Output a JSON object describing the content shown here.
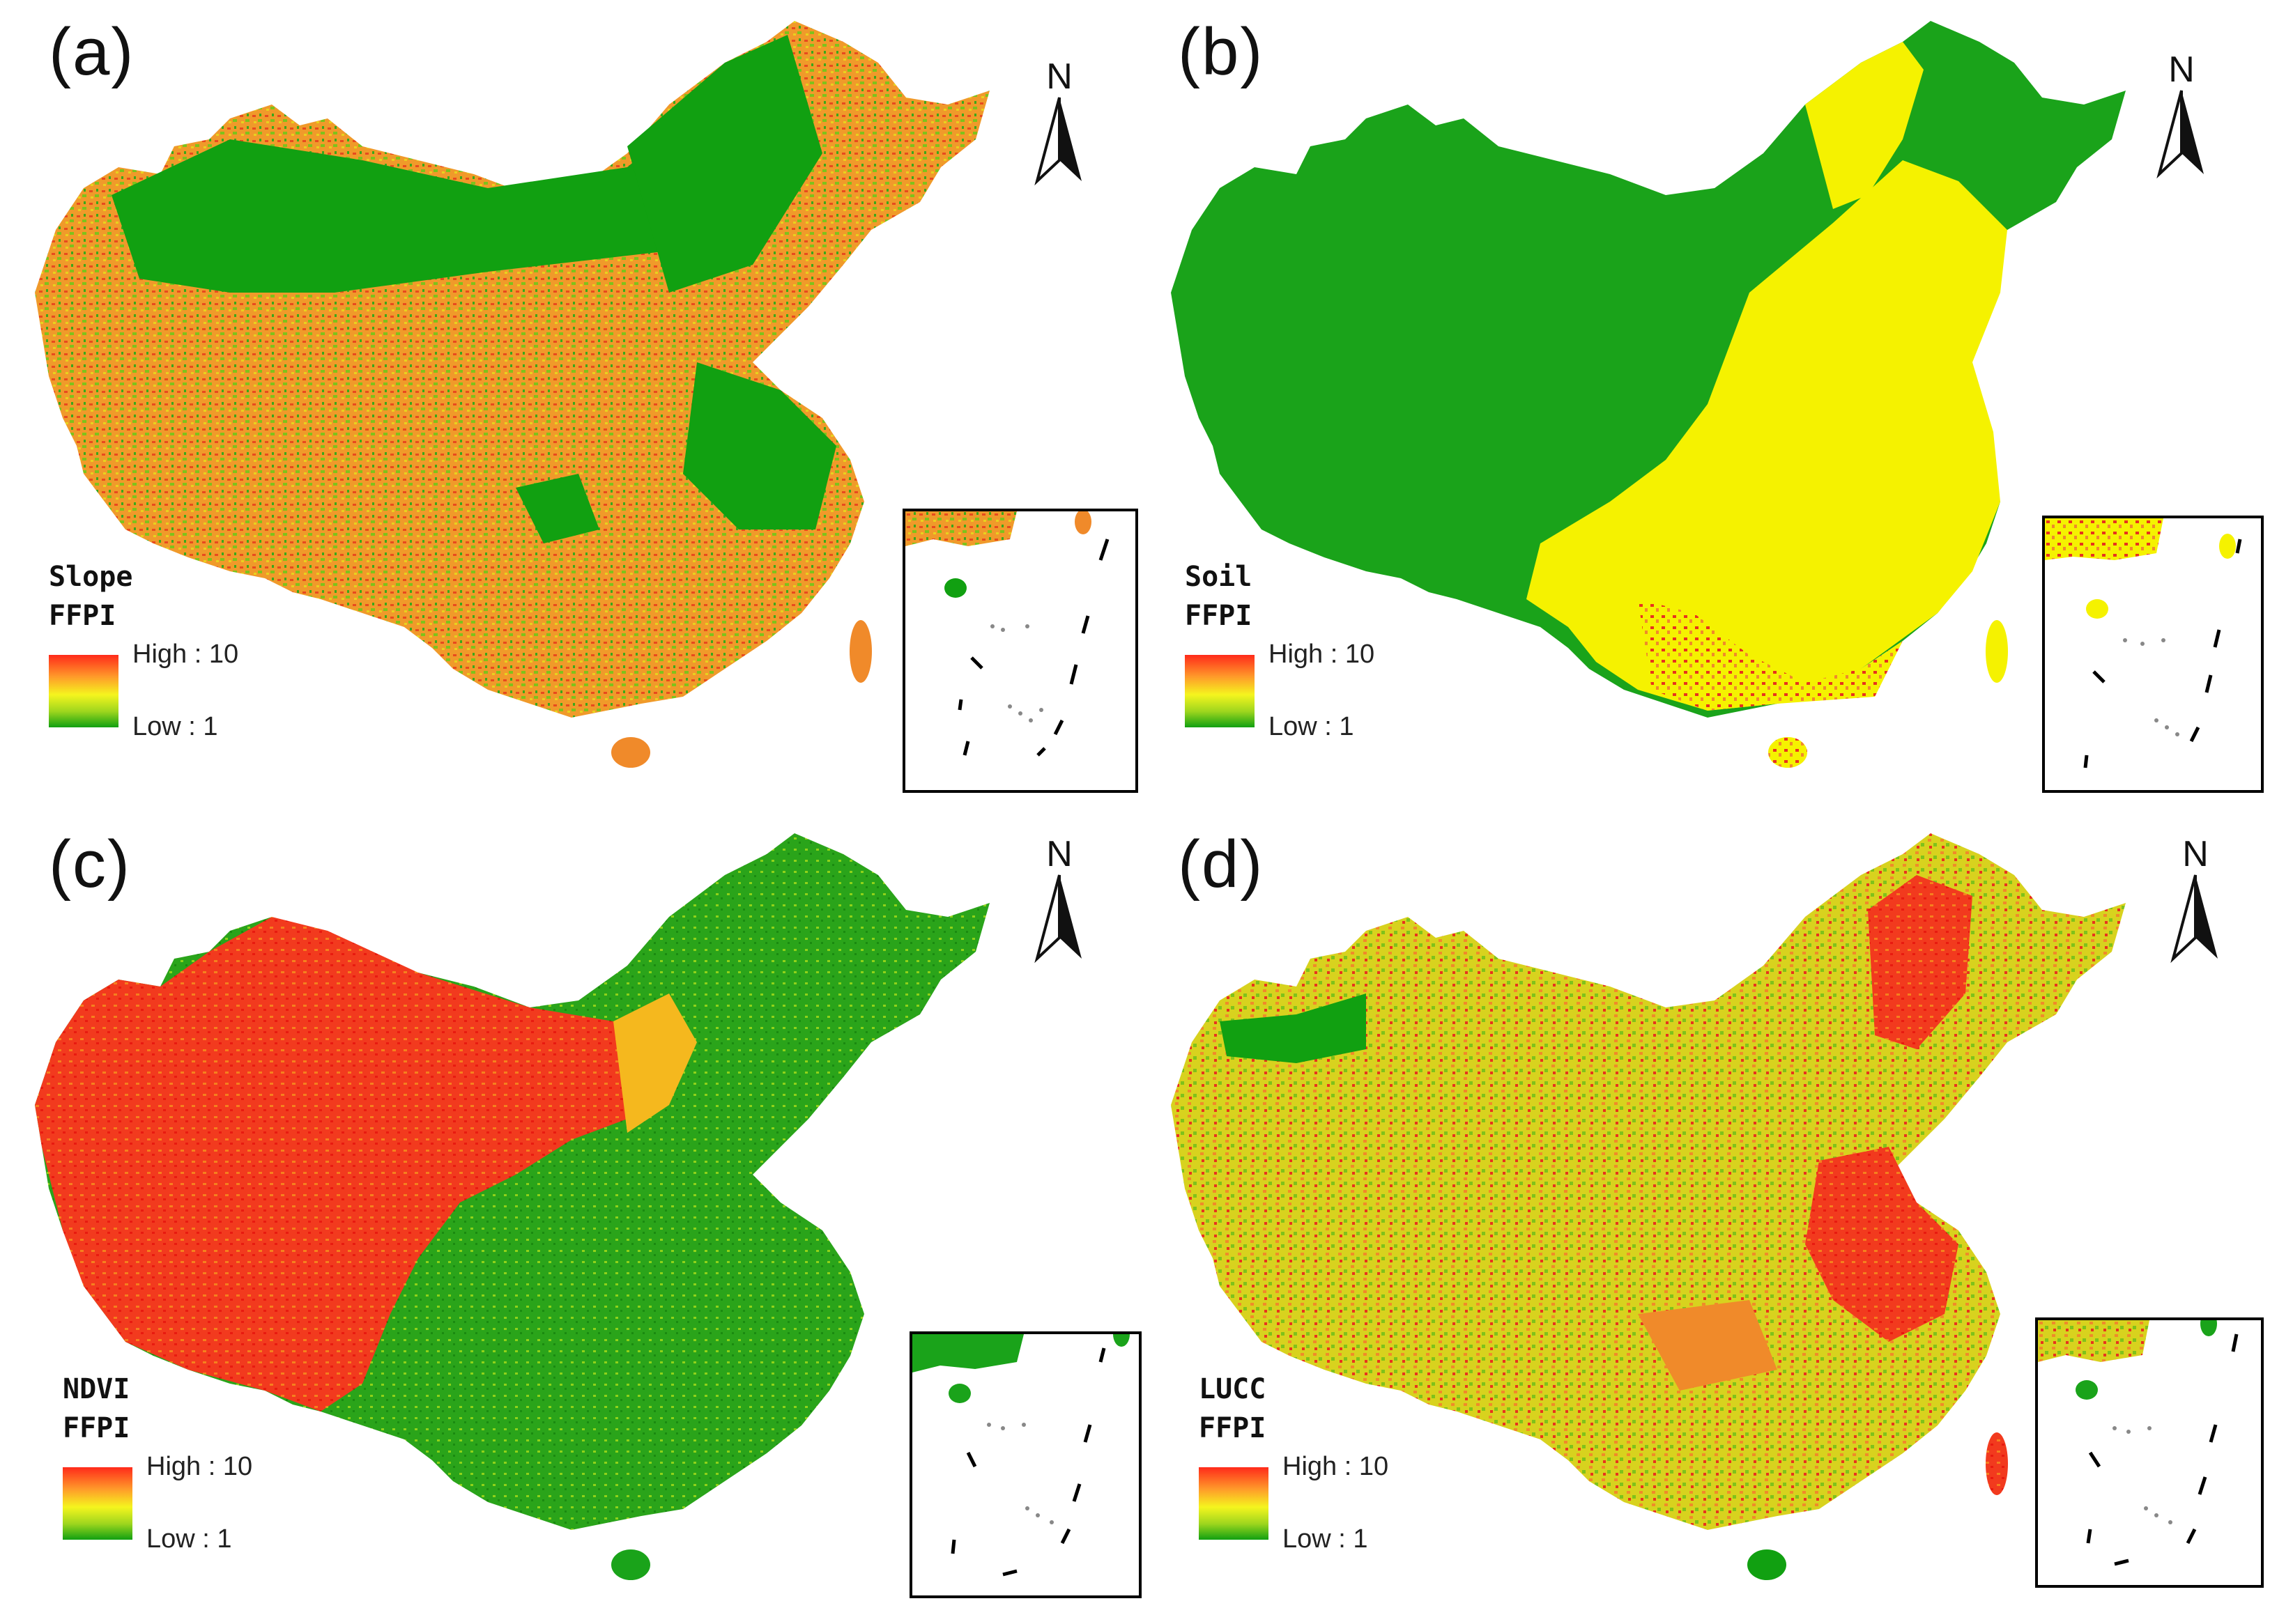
{
  "colors": {
    "high": "#e8321e",
    "mid_orange": "#f08a2a",
    "yellow": "#f5f200",
    "low": "#1aa31a",
    "ramp": [
      "#ff2a1a",
      "#ff9a2a",
      "#f5f51e",
      "#9ed61e",
      "#11a011"
    ]
  },
  "panels": [
    {
      "label": "(a)",
      "north": "N",
      "legend": {
        "title": "Slope\nFFPI",
        "high": "High : 10",
        "low": "Low : 1"
      },
      "dominant_scheme": "green-orange"
    },
    {
      "label": "(b)",
      "north": "N",
      "legend": {
        "title": "Soil\nFFPI",
        "high": "High : 10",
        "low": "Low : 1"
      },
      "dominant_scheme": "green-yellow-red"
    },
    {
      "label": "(c)",
      "north": "N",
      "legend": {
        "title": "NDVI\nFFPI",
        "high": "High : 10",
        "low": "Low : 1"
      },
      "dominant_scheme": "red-west-green-east"
    },
    {
      "label": "(d)",
      "north": "N",
      "legend": {
        "title": "LUCC\nFFPI",
        "high": "High : 10",
        "low": "Low : 1"
      },
      "dominant_scheme": "mixed-yellow-red"
    }
  ]
}
